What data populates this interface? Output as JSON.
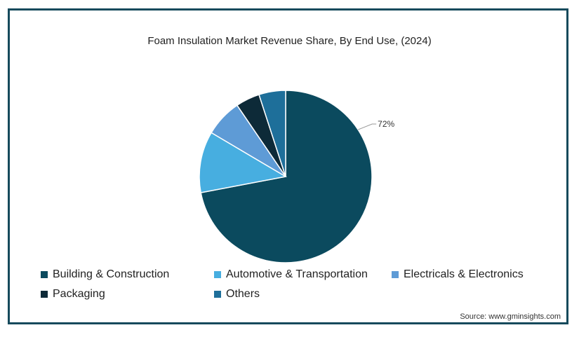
{
  "chart_data": {
    "type": "pie",
    "title": "Foam Insulation Market Revenue Share, By End Use, (2024)",
    "slices": [
      {
        "name": "Building & Construction",
        "value": 72,
        "color": "#0b4a5e",
        "label": "72%"
      },
      {
        "name": "Automotive & Transportation",
        "value": 11.5,
        "color": "#47aee0",
        "label": ""
      },
      {
        "name": "Electricals & Electronics",
        "value": 7,
        "color": "#5e9bd6",
        "label": ""
      },
      {
        "name": "Packaging",
        "value": 4.5,
        "color": "#0d2a38",
        "label": ""
      },
      {
        "name": "Others",
        "value": 5,
        "color": "#1e6f9a",
        "label": ""
      }
    ],
    "legend": "bottom",
    "source": "Source: www.gminsights.com"
  }
}
